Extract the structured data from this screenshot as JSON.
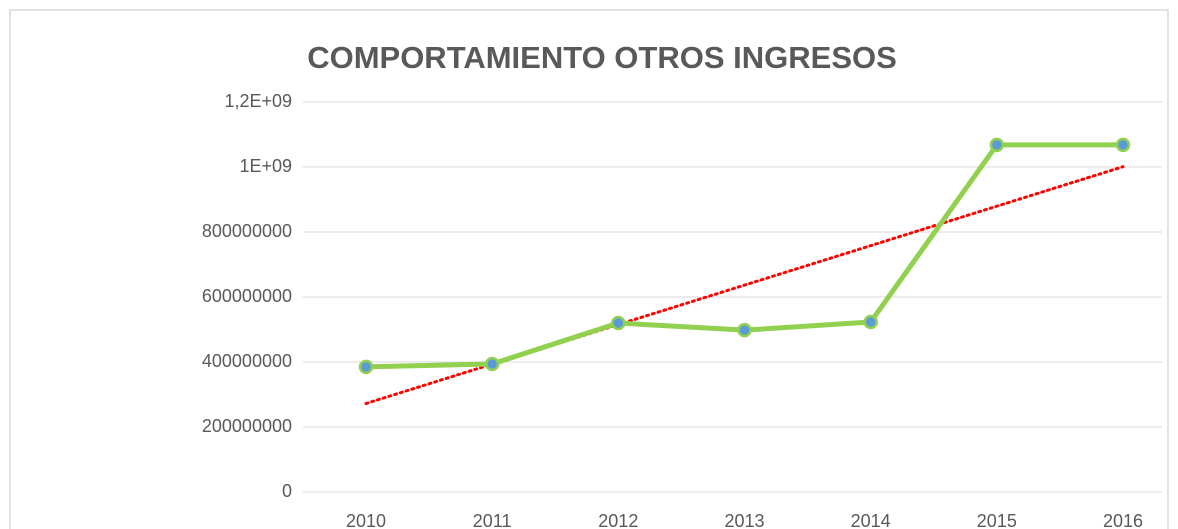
{
  "chart_data": {
    "type": "line",
    "title": "COMPORTAMIENTO OTROS INGRESOS",
    "categories": [
      "2010",
      "2011",
      "2012",
      "2013",
      "2014",
      "2015",
      "2016"
    ],
    "series": [
      {
        "color": "#92d050",
        "marker_color": "#5b9bd5",
        "values": [
          385000000,
          394000000,
          520000000,
          498000000,
          523000000,
          1068000000,
          1068000000
        ]
      }
    ],
    "trendline": "linear",
    "trendline_color": "#ff0000",
    "ylim": [
      0,
      1200000000
    ],
    "yticks": [
      0,
      200000000,
      400000000,
      600000000,
      800000000,
      {
        "value": 1000000000,
        "label": "1E+09"
      },
      {
        "value": 1200000000,
        "label": "1,2E+09"
      }
    ],
    "grid": true
  }
}
